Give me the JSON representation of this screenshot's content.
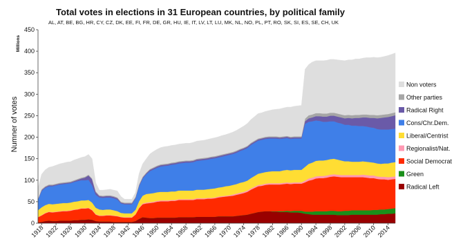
{
  "chart_data": {
    "type": "area",
    "stacked": true,
    "title": "Total votes in elections in 31 European countries, by political family",
    "subtitle": "AL, AT, BE, BG, HR, CY, CZ, DK, EE, FI, FR, DE, GR, HU, IE, IT, LV, LT, LU, MK, NL, NO, PL, PT, RO, SK, SI, ES, SE, CH, UK",
    "units_label": "Millions",
    "ylabel": "Numner of votes",
    "xlabel": "",
    "ylim": [
      0,
      450
    ],
    "xlim": [
      1917,
      2016
    ],
    "y_ticks": [
      0,
      50,
      100,
      150,
      200,
      250,
      300,
      350,
      400,
      450
    ],
    "x_ticks": [
      1918,
      1922,
      1926,
      1930,
      1934,
      1938,
      1942,
      1946,
      1950,
      1954,
      1958,
      1962,
      1966,
      1970,
      1974,
      1978,
      1982,
      1986,
      1990,
      1994,
      1998,
      2002,
      2006,
      2010,
      2014
    ],
    "grid": false,
    "legend_position": "right",
    "x": [
      1917,
      1918,
      1919,
      1920,
      1921,
      1922,
      1923,
      1924,
      1925,
      1926,
      1927,
      1928,
      1929,
      1930,
      1931,
      1932,
      1933,
      1934,
      1935,
      1936,
      1937,
      1938,
      1939,
      1940,
      1941,
      1942,
      1943,
      1944,
      1945,
      1946,
      1947,
      1948,
      1949,
      1950,
      1951,
      1952,
      1953,
      1954,
      1955,
      1956,
      1957,
      1958,
      1959,
      1960,
      1961,
      1962,
      1963,
      1964,
      1965,
      1966,
      1967,
      1968,
      1969,
      1970,
      1971,
      1972,
      1973,
      1974,
      1975,
      1976,
      1977,
      1978,
      1979,
      1980,
      1981,
      1982,
      1983,
      1984,
      1985,
      1986,
      1987,
      1988,
      1989,
      1990,
      1991,
      1992,
      1993,
      1994,
      1995,
      1996,
      1997,
      1998,
      1999,
      2000,
      2001,
      2002,
      2003,
      2004,
      2005,
      2006,
      2007,
      2008,
      2009,
      2010,
      2011,
      2012,
      2013,
      2014,
      2015,
      2016
    ],
    "series": [
      {
        "name": "Radical Left",
        "color": "#990000",
        "values": [
          2,
          3,
          5,
          6,
          5,
          5,
          6,
          6,
          6,
          6,
          7,
          7,
          8,
          8,
          9,
          8,
          5,
          4,
          4,
          4,
          4,
          3,
          3,
          3,
          3,
          3,
          3,
          5,
          10,
          14,
          13,
          12,
          12,
          13,
          13,
          13,
          13,
          13,
          13,
          14,
          14,
          14,
          14,
          14,
          15,
          15,
          15,
          15,
          15,
          15,
          16,
          16,
          16,
          16,
          16,
          17,
          18,
          19,
          20,
          22,
          24,
          26,
          27,
          28,
          28,
          27,
          27,
          26,
          26,
          26,
          25,
          25,
          25,
          24,
          22,
          21,
          20,
          20,
          20,
          20,
          20,
          20,
          20,
          19,
          19,
          19,
          19,
          20,
          20,
          20,
          20,
          20,
          20,
          20,
          20,
          21,
          21,
          22,
          22,
          23
        ]
      },
      {
        "name": "Green",
        "color": "#1a8f1a",
        "values": [
          0,
          0,
          0,
          0,
          0,
          0,
          0,
          0,
          0,
          0,
          0,
          0,
          0,
          0,
          0,
          0,
          0,
          0,
          0,
          0,
          0,
          0,
          0,
          0,
          0,
          0,
          0,
          0,
          0,
          0,
          0,
          0,
          0,
          0,
          0,
          0,
          0,
          0,
          0,
          0,
          0,
          0,
          0,
          0,
          0,
          0,
          0,
          0,
          0,
          0,
          0,
          0,
          0,
          0,
          0,
          0,
          0,
          0,
          0,
          0,
          0,
          0,
          0,
          0,
          0,
          1,
          1,
          2,
          2,
          3,
          3,
          4,
          4,
          5,
          5,
          6,
          7,
          8,
          8,
          8,
          8,
          9,
          9,
          9,
          9,
          10,
          10,
          10,
          10,
          10,
          10,
          10,
          10,
          11,
          11,
          11,
          11,
          11,
          12,
          12
        ]
      },
      {
        "name": "Social Democrat",
        "color": "#ff2a00",
        "values": [
          12,
          15,
          18,
          20,
          20,
          21,
          21,
          22,
          22,
          23,
          24,
          25,
          26,
          26,
          26,
          22,
          15,
          13,
          13,
          14,
          14,
          14,
          13,
          11,
          10,
          10,
          10,
          15,
          25,
          30,
          33,
          35,
          36,
          37,
          38,
          38,
          38,
          39,
          39,
          40,
          40,
          40,
          40,
          40,
          41,
          41,
          41,
          42,
          42,
          43,
          44,
          45,
          46,
          47,
          48,
          49,
          50,
          51,
          53,
          56,
          58,
          60,
          60,
          61,
          62,
          62,
          62,
          62,
          63,
          63,
          63,
          63,
          63,
          63,
          68,
          72,
          74,
          76,
          77,
          77,
          78,
          79,
          80,
          80,
          79,
          78,
          78,
          77,
          77,
          77,
          77,
          76,
          75,
          74,
          72,
          70,
          70,
          68,
          68,
          68
        ]
      },
      {
        "name": "Regionalist/Nat.",
        "color": "#ff99b3",
        "values": [
          0,
          1,
          1,
          1,
          1,
          1,
          1,
          1,
          1,
          1,
          1,
          1,
          1,
          1,
          1,
          1,
          1,
          1,
          1,
          1,
          1,
          1,
          1,
          1,
          1,
          1,
          1,
          1,
          1,
          2,
          2,
          2,
          2,
          2,
          2,
          2,
          2,
          2,
          2,
          2,
          2,
          2,
          2,
          2,
          2,
          2,
          2,
          2,
          2,
          2,
          2,
          2,
          2,
          2,
          3,
          3,
          3,
          3,
          3,
          3,
          3,
          3,
          3,
          3,
          3,
          3,
          3,
          3,
          3,
          3,
          3,
          3,
          3,
          3,
          4,
          5,
          5,
          5,
          5,
          5,
          5,
          5,
          5,
          5,
          5,
          5,
          5,
          5,
          5,
          5,
          6,
          6,
          6,
          6,
          6,
          6,
          6,
          6,
          6,
          6
        ]
      },
      {
        "name": "Liberal/Centrist",
        "color": "#ffdd33",
        "values": [
          16,
          18,
          18,
          18,
          18,
          18,
          18,
          18,
          18,
          18,
          18,
          18,
          18,
          18,
          18,
          17,
          15,
          14,
          13,
          13,
          13,
          12,
          11,
          9,
          9,
          9,
          9,
          10,
          15,
          18,
          20,
          20,
          20,
          20,
          20,
          20,
          20,
          20,
          20,
          20,
          20,
          20,
          20,
          20,
          20,
          20,
          20,
          20,
          21,
          21,
          21,
          21,
          22,
          22,
          22,
          22,
          23,
          23,
          23,
          24,
          25,
          26,
          27,
          27,
          27,
          28,
          28,
          28,
          29,
          29,
          29,
          29,
          29,
          29,
          32,
          34,
          35,
          36,
          36,
          36,
          36,
          36,
          36,
          35,
          34,
          32,
          32,
          31,
          31,
          31,
          31,
          31,
          31,
          30,
          30,
          30,
          31,
          32,
          33,
          33
        ]
      },
      {
        "name": "Cons/Chr.Dem.",
        "color": "#3f7fe8",
        "values": [
          25,
          38,
          40,
          41,
          42,
          43,
          44,
          44,
          45,
          45,
          46,
          47,
          47,
          47,
          47,
          40,
          30,
          28,
          28,
          28,
          28,
          28,
          27,
          22,
          21,
          21,
          21,
          26,
          35,
          40,
          46,
          52,
          55,
          57,
          59,
          60,
          61,
          62,
          63,
          63,
          64,
          65,
          65,
          66,
          67,
          68,
          69,
          69,
          70,
          70,
          70,
          71,
          71,
          72,
          72,
          73,
          74,
          75,
          76,
          77,
          77,
          77,
          77,
          77,
          77,
          76,
          76,
          75,
          74,
          74,
          73,
          73,
          73,
          73,
          100,
          98,
          96,
          94,
          92,
          90,
          89,
          88,
          87,
          86,
          86,
          85,
          85,
          84,
          84,
          83,
          82,
          82,
          81,
          81,
          80,
          80,
          79,
          79,
          78,
          78
        ]
      },
      {
        "name": "Radical Right",
        "color": "#6a5aa8",
        "values": [
          1,
          2,
          2,
          2,
          2,
          2,
          2,
          2,
          2,
          2,
          2,
          3,
          4,
          6,
          10,
          14,
          6,
          3,
          3,
          3,
          3,
          3,
          3,
          2,
          2,
          2,
          2,
          2,
          2,
          2,
          2,
          3,
          3,
          3,
          3,
          3,
          3,
          3,
          3,
          3,
          3,
          3,
          3,
          3,
          3,
          3,
          3,
          3,
          3,
          3,
          3,
          3,
          3,
          3,
          3,
          3,
          3,
          3,
          3,
          3,
          3,
          3,
          3,
          3,
          3,
          3,
          3,
          3,
          3,
          3,
          3,
          3,
          3,
          3,
          6,
          8,
          9,
          10,
          11,
          12,
          12,
          13,
          13,
          14,
          14,
          15,
          16,
          17,
          18,
          19,
          20,
          21,
          22,
          23,
          25,
          27,
          28,
          29,
          30,
          31
        ]
      },
      {
        "name": "Other parties",
        "color": "#a6a6a6",
        "values": [
          1,
          2,
          2,
          2,
          2,
          2,
          2,
          2,
          2,
          2,
          2,
          2,
          2,
          2,
          2,
          2,
          2,
          2,
          2,
          2,
          2,
          2,
          2,
          2,
          2,
          2,
          2,
          2,
          2,
          2,
          2,
          2,
          2,
          2,
          2,
          2,
          2,
          2,
          2,
          2,
          2,
          2,
          2,
          2,
          2,
          2,
          2,
          2,
          2,
          2,
          2,
          2,
          2,
          2,
          2,
          2,
          2,
          2,
          2,
          2,
          2,
          2,
          2,
          2,
          2,
          2,
          2,
          2,
          2,
          2,
          2,
          2,
          2,
          2,
          6,
          7,
          7,
          7,
          7,
          7,
          7,
          7,
          7,
          7,
          7,
          7,
          7,
          7,
          7,
          7,
          7,
          7,
          7,
          7,
          7,
          7,
          7,
          7,
          7,
          7
        ]
      },
      {
        "name": "Non voters",
        "color": "#dedede",
        "values": [
          25,
          35,
          38,
          40,
          42,
          43,
          44,
          45,
          46,
          46,
          47,
          47,
          47,
          47,
          47,
          46,
          20,
          12,
          13,
          13,
          14,
          14,
          15,
          12,
          8,
          8,
          8,
          10,
          25,
          30,
          32,
          35,
          37,
          38,
          39,
          40,
          40,
          40,
          40,
          40,
          40,
          40,
          40,
          41,
          41,
          41,
          41,
          42,
          42,
          43,
          43,
          44,
          44,
          45,
          46,
          47,
          48,
          50,
          52,
          54,
          56,
          58,
          58,
          59,
          60,
          62,
          63,
          65,
          66,
          67,
          69,
          70,
          71,
          72,
          115,
          118,
          122,
          122,
          122,
          123,
          124,
          124,
          124,
          125,
          126,
          127,
          128,
          129,
          130,
          130,
          131,
          132,
          133,
          134,
          134,
          134,
          135,
          136,
          137,
          138
        ]
      }
    ]
  }
}
